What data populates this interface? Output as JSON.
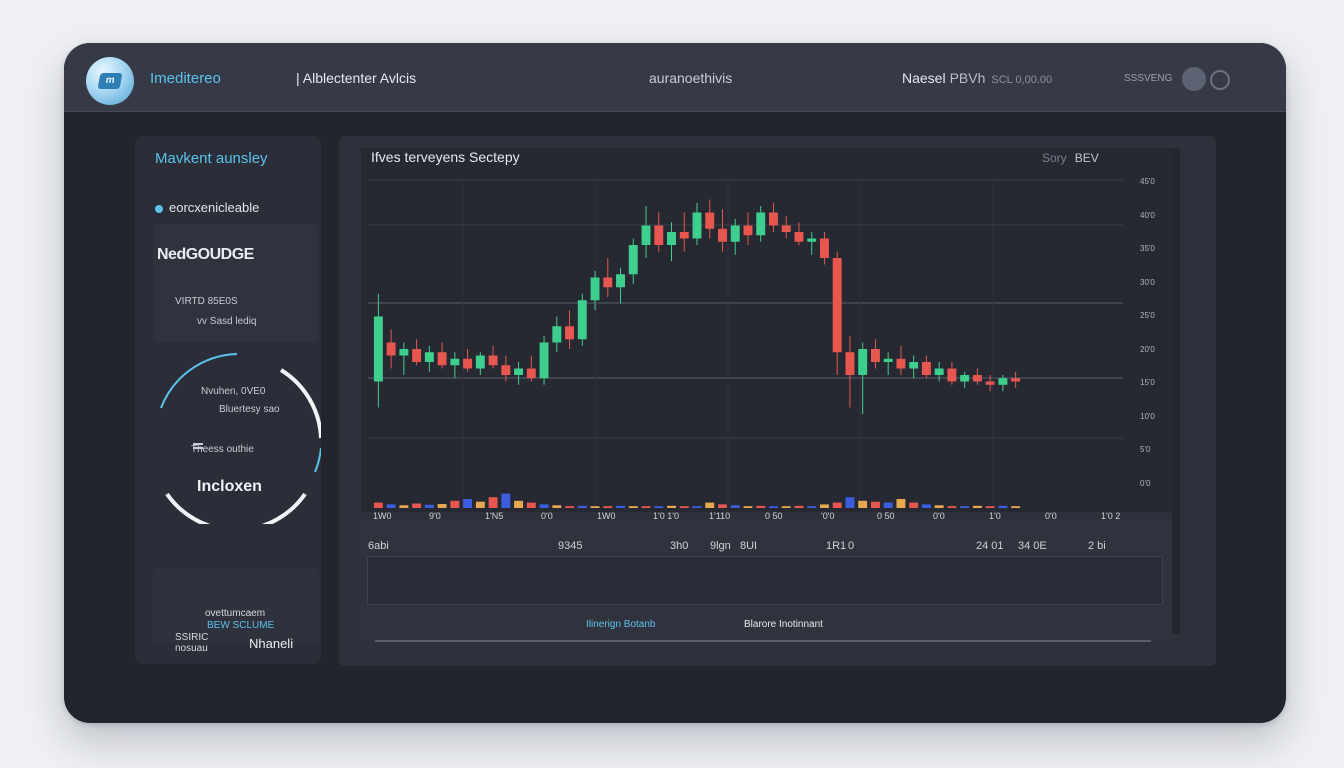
{
  "header": {
    "logo_glyph": "m",
    "brand": "Imeditereo",
    "nav_left": "| Alblectenter Avlcis",
    "nav_mid": "auranoethivis",
    "nav_right": "Naesel",
    "nav_right_value": "PBVh",
    "nav_right_small": "SCL 0,00.00",
    "nav_far": "SSSVENG"
  },
  "sidebar": {
    "title": "Mavkent aunsley",
    "subtitle": "eorcxenicleable",
    "card1_big": "NedGOUDGE",
    "card1_line1": "VIRTD 85E0S",
    "card1_line2": "vv Sasd lediq",
    "gauge_line1": "Nvuhen, 0VE0",
    "gauge_line2": "Bluertesy sao",
    "gauge_line3": "Theess outhie",
    "gauge_label": "Incloxen",
    "card2_line1": "ovettumcaem",
    "card2_line2": "BEW SCLUME",
    "foot1": "SSIRIC nosuau",
    "foot2": "Nhaneli"
  },
  "chart": {
    "title": "Ifves terveyens Sectepy",
    "opt_label": "Sory",
    "opt_value": "BEV",
    "sub_labels": [
      "6abi",
      "9345",
      "3h0",
      "9lgn",
      "8UI",
      "1R1",
      "0",
      "24 01",
      "34 0E",
      "2 bi"
    ],
    "legend_left": "Ilinerign Botanb",
    "legend_right": "Blarore Inotinnant"
  },
  "chart_data": {
    "type": "candlestick",
    "title": "Ifves terveyens Sectepy",
    "x_tick_labels": [
      "1W0",
      "9'0",
      "1'N5",
      "0'0",
      "1W0",
      "1'0 1'0",
      "1'110",
      "0 50",
      "'0'0",
      "0 50",
      "0'0",
      "1'0",
      "0'0",
      "1'0 2"
    ],
    "y_tick_labels": [
      "45'0",
      "40'0",
      "35'0",
      "30'0",
      "25'0",
      "20'0",
      "15'0",
      "10'0",
      "5'0",
      "0'0"
    ],
    "candles": [
      {
        "o": 0.18,
        "h": 0.45,
        "l": 0.1,
        "c": 0.38,
        "v": 0.3
      },
      {
        "o": 0.3,
        "h": 0.34,
        "l": 0.22,
        "c": 0.26,
        "v": 0.2
      },
      {
        "o": 0.26,
        "h": 0.3,
        "l": 0.2,
        "c": 0.28,
        "v": 0.15
      },
      {
        "o": 0.28,
        "h": 0.31,
        "l": 0.23,
        "c": 0.24,
        "v": 0.25
      },
      {
        "o": 0.24,
        "h": 0.29,
        "l": 0.21,
        "c": 0.27,
        "v": 0.18
      },
      {
        "o": 0.27,
        "h": 0.3,
        "l": 0.22,
        "c": 0.23,
        "v": 0.22
      },
      {
        "o": 0.23,
        "h": 0.27,
        "l": 0.19,
        "c": 0.25,
        "v": 0.4
      },
      {
        "o": 0.25,
        "h": 0.28,
        "l": 0.21,
        "c": 0.22,
        "v": 0.5
      },
      {
        "o": 0.22,
        "h": 0.27,
        "l": 0.2,
        "c": 0.26,
        "v": 0.35
      },
      {
        "o": 0.26,
        "h": 0.29,
        "l": 0.22,
        "c": 0.23,
        "v": 0.6
      },
      {
        "o": 0.23,
        "h": 0.26,
        "l": 0.18,
        "c": 0.2,
        "v": 0.8
      },
      {
        "o": 0.2,
        "h": 0.24,
        "l": 0.17,
        "c": 0.22,
        "v": 0.4
      },
      {
        "o": 0.22,
        "h": 0.26,
        "l": 0.18,
        "c": 0.19,
        "v": 0.3
      },
      {
        "o": 0.19,
        "h": 0.32,
        "l": 0.17,
        "c": 0.3,
        "v": 0.2
      },
      {
        "o": 0.3,
        "h": 0.38,
        "l": 0.27,
        "c": 0.35,
        "v": 0.15
      },
      {
        "o": 0.35,
        "h": 0.4,
        "l": 0.28,
        "c": 0.31,
        "v": 0.1
      },
      {
        "o": 0.31,
        "h": 0.45,
        "l": 0.29,
        "c": 0.43,
        "v": 0.12
      },
      {
        "o": 0.43,
        "h": 0.52,
        "l": 0.4,
        "c": 0.5,
        "v": 0.1
      },
      {
        "o": 0.5,
        "h": 0.56,
        "l": 0.44,
        "c": 0.47,
        "v": 0.1
      },
      {
        "o": 0.47,
        "h": 0.53,
        "l": 0.42,
        "c": 0.51,
        "v": 0.12
      },
      {
        "o": 0.51,
        "h": 0.62,
        "l": 0.48,
        "c": 0.6,
        "v": 0.1
      },
      {
        "o": 0.6,
        "h": 0.72,
        "l": 0.56,
        "c": 0.66,
        "v": 0.1
      },
      {
        "o": 0.66,
        "h": 0.7,
        "l": 0.58,
        "c": 0.6,
        "v": 0.1
      },
      {
        "o": 0.6,
        "h": 0.67,
        "l": 0.55,
        "c": 0.64,
        "v": 0.12
      },
      {
        "o": 0.64,
        "h": 0.7,
        "l": 0.58,
        "c": 0.62,
        "v": 0.1
      },
      {
        "o": 0.62,
        "h": 0.73,
        "l": 0.6,
        "c": 0.7,
        "v": 0.1
      },
      {
        "o": 0.7,
        "h": 0.74,
        "l": 0.62,
        "c": 0.65,
        "v": 0.3
      },
      {
        "o": 0.65,
        "h": 0.71,
        "l": 0.58,
        "c": 0.61,
        "v": 0.2
      },
      {
        "o": 0.61,
        "h": 0.68,
        "l": 0.57,
        "c": 0.66,
        "v": 0.15
      },
      {
        "o": 0.66,
        "h": 0.7,
        "l": 0.6,
        "c": 0.63,
        "v": 0.1
      },
      {
        "o": 0.63,
        "h": 0.72,
        "l": 0.61,
        "c": 0.7,
        "v": 0.12
      },
      {
        "o": 0.7,
        "h": 0.73,
        "l": 0.64,
        "c": 0.66,
        "v": 0.1
      },
      {
        "o": 0.66,
        "h": 0.69,
        "l": 0.62,
        "c": 0.64,
        "v": 0.1
      },
      {
        "o": 0.64,
        "h": 0.67,
        "l": 0.6,
        "c": 0.61,
        "v": 0.12
      },
      {
        "o": 0.61,
        "h": 0.64,
        "l": 0.57,
        "c": 0.62,
        "v": 0.1
      },
      {
        "o": 0.62,
        "h": 0.64,
        "l": 0.54,
        "c": 0.56,
        "v": 0.2
      },
      {
        "o": 0.56,
        "h": 0.58,
        "l": 0.2,
        "c": 0.27,
        "v": 0.3
      },
      {
        "o": 0.27,
        "h": 0.32,
        "l": 0.1,
        "c": 0.2,
        "v": 0.6
      },
      {
        "o": 0.2,
        "h": 0.3,
        "l": 0.08,
        "c": 0.28,
        "v": 0.4
      },
      {
        "o": 0.28,
        "h": 0.31,
        "l": 0.22,
        "c": 0.24,
        "v": 0.35
      },
      {
        "o": 0.24,
        "h": 0.27,
        "l": 0.2,
        "c": 0.25,
        "v": 0.3
      },
      {
        "o": 0.25,
        "h": 0.29,
        "l": 0.2,
        "c": 0.22,
        "v": 0.5
      },
      {
        "o": 0.22,
        "h": 0.26,
        "l": 0.19,
        "c": 0.24,
        "v": 0.3
      },
      {
        "o": 0.24,
        "h": 0.26,
        "l": 0.19,
        "c": 0.2,
        "v": 0.2
      },
      {
        "o": 0.2,
        "h": 0.24,
        "l": 0.18,
        "c": 0.22,
        "v": 0.15
      },
      {
        "o": 0.22,
        "h": 0.24,
        "l": 0.17,
        "c": 0.18,
        "v": 0.1
      },
      {
        "o": 0.18,
        "h": 0.21,
        "l": 0.16,
        "c": 0.2,
        "v": 0.1
      },
      {
        "o": 0.2,
        "h": 0.22,
        "l": 0.17,
        "c": 0.18,
        "v": 0.12
      },
      {
        "o": 0.18,
        "h": 0.2,
        "l": 0.15,
        "c": 0.17,
        "v": 0.1
      },
      {
        "o": 0.17,
        "h": 0.2,
        "l": 0.15,
        "c": 0.19,
        "v": 0.12
      },
      {
        "o": 0.19,
        "h": 0.21,
        "l": 0.16,
        "c": 0.18,
        "v": 0.1
      }
    ],
    "up_color": "#3ecf8e",
    "down_color": "#e8574f",
    "volume_colors": [
      "#e8574f",
      "#3b5ee0",
      "#e8a84f"
    ],
    "grid": true
  },
  "colors": {
    "accent": "#5bc2ea",
    "window_bg": "#22252e",
    "panel_bg": "#2e313b"
  }
}
